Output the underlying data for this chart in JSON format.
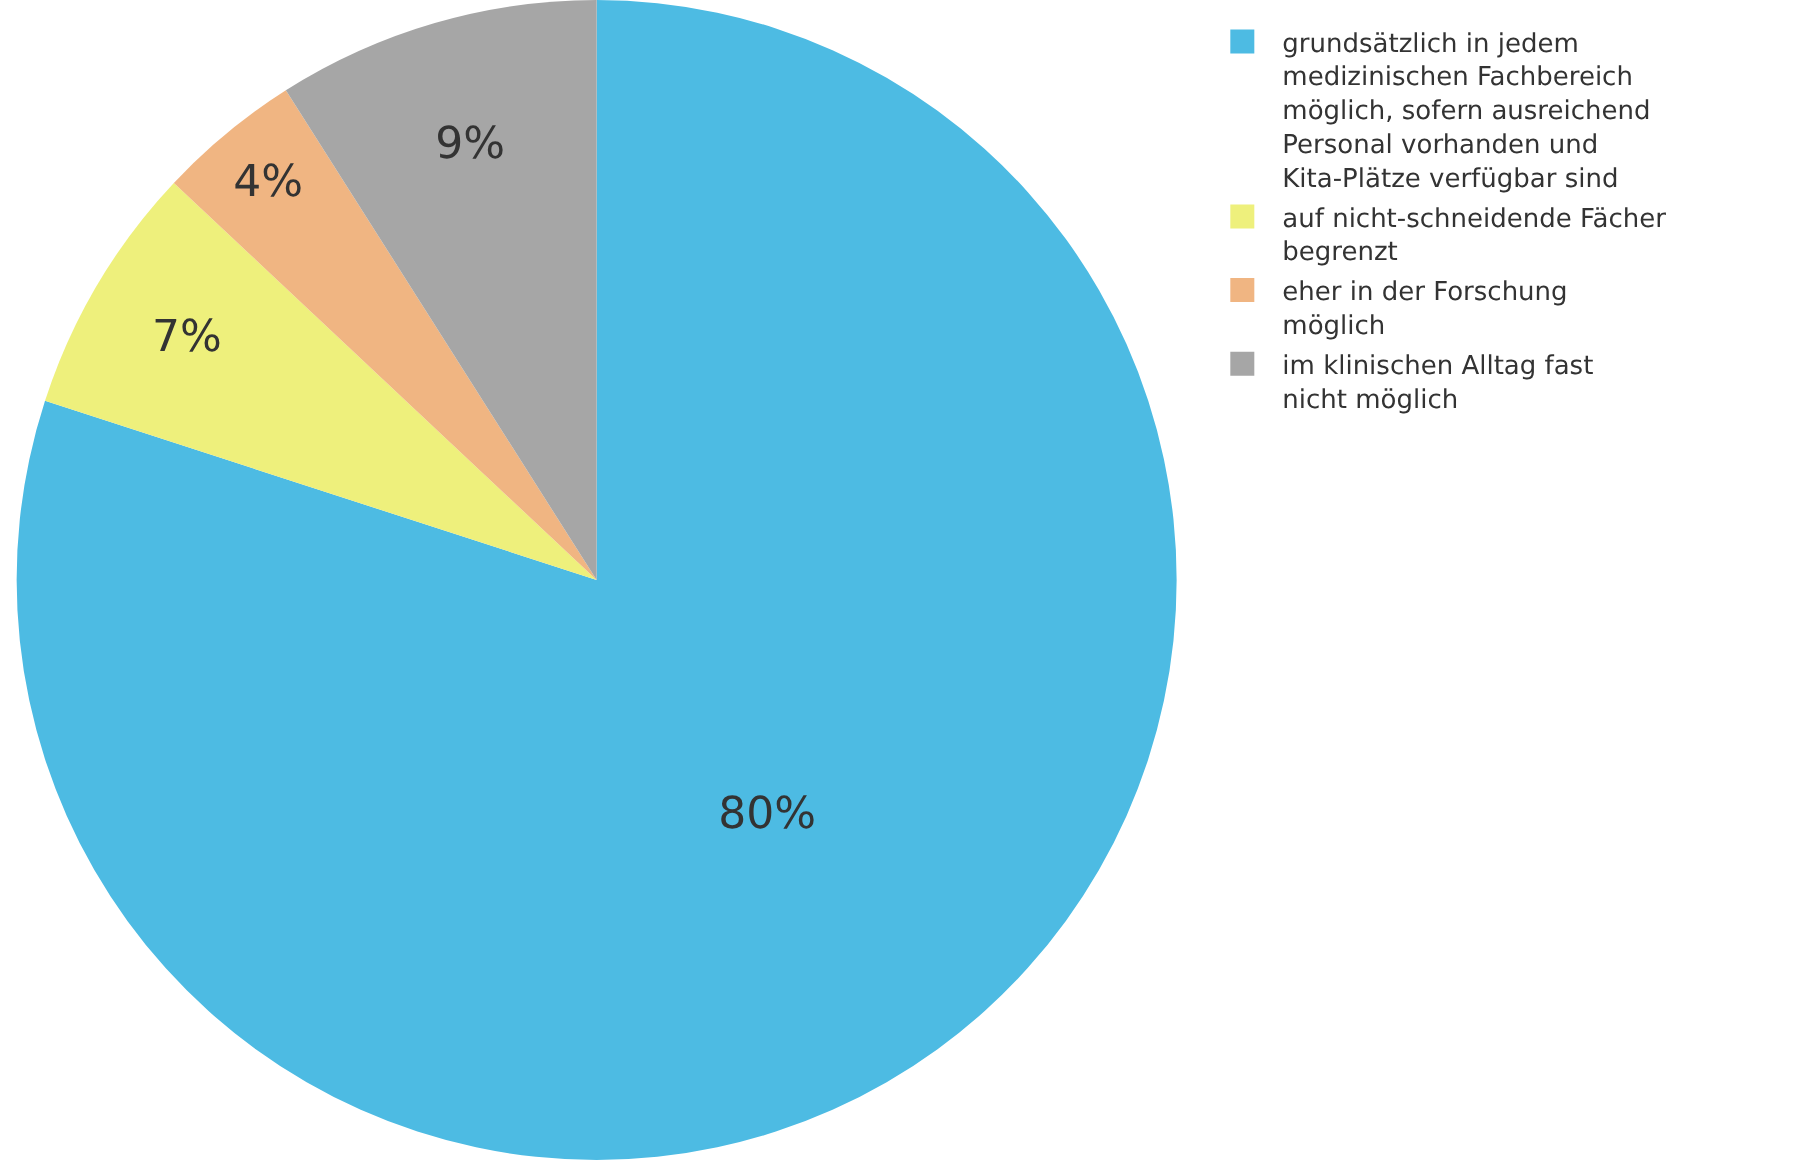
{
  "chart_data": {
    "type": "pie",
    "categories": [
      "grundsätzlich in jedem medizinischen Fachbereich möglich, sofern ausreichend Personal vorhanden und Kita-Plätze verfügbar sind",
      "auf nicht-schneidende Fächer begrenzt",
      "eher in der Forschung möglich",
      "im klinischen Alltag fast nicht möglich"
    ],
    "values": [
      80,
      7,
      4,
      9
    ],
    "colors": [
      "#4dbbe3",
      "#eef07c",
      "#f0b582",
      "#a6a6a6"
    ],
    "value_labels": [
      "80%",
      "7%",
      "4%",
      "9%"
    ],
    "legend": "right"
  }
}
